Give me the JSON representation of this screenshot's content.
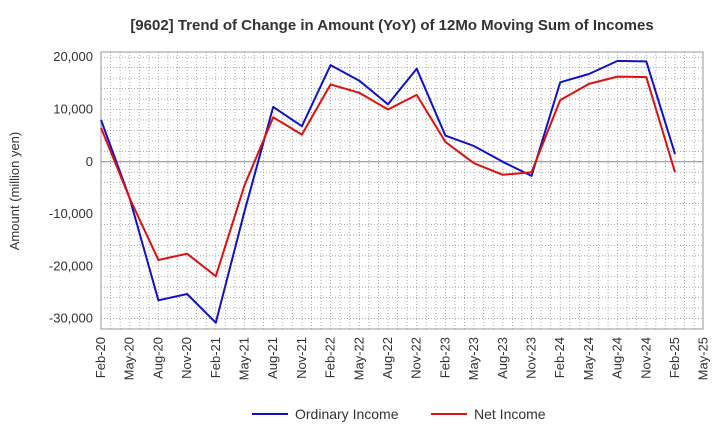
{
  "chart_data": {
    "type": "line",
    "title": "[9602]  Trend of Change in Amount (YoY) of 12Mo Moving Sum of Incomes",
    "ylabel": "Amount (million yen)",
    "xlabel": "",
    "ylim": [
      -32000,
      21000
    ],
    "yticks": [
      20000,
      10000,
      0,
      -10000,
      -20000,
      -30000
    ],
    "ytick_labels": [
      "20,000",
      "10,000",
      "0",
      "-10,000",
      "-20,000",
      "-30,000"
    ],
    "xtick_labels": [
      "Feb-20",
      "May-20",
      "Aug-20",
      "Nov-20",
      "Feb-21",
      "May-21",
      "Aug-21",
      "Nov-21",
      "Feb-22",
      "May-22",
      "Aug-22",
      "Nov-22",
      "Feb-23",
      "May-23",
      "Aug-23",
      "Nov-23",
      "Feb-24",
      "May-24",
      "Aug-24",
      "Nov-24",
      "Feb-25",
      "May-25"
    ],
    "grid": true,
    "legend": "bottom",
    "series": [
      {
        "name": "Ordinary Income",
        "color": "#1111cc",
        "values": [
          8000,
          -7000,
          -26500,
          -25300,
          -30800,
          -9500,
          10500,
          6800,
          18500,
          15500,
          11000,
          17800,
          5000,
          3000,
          0,
          -2700,
          15200,
          16800,
          19300,
          19200,
          1500
        ]
      },
      {
        "name": "Net Income",
        "color": "#dd1111",
        "values": [
          6500,
          -7000,
          -18800,
          -17600,
          -21900,
          -4500,
          8500,
          5200,
          14800,
          13200,
          10000,
          12800,
          3800,
          -300,
          -2500,
          -2000,
          11800,
          14900,
          16300,
          16200,
          -2000
        ]
      }
    ]
  }
}
